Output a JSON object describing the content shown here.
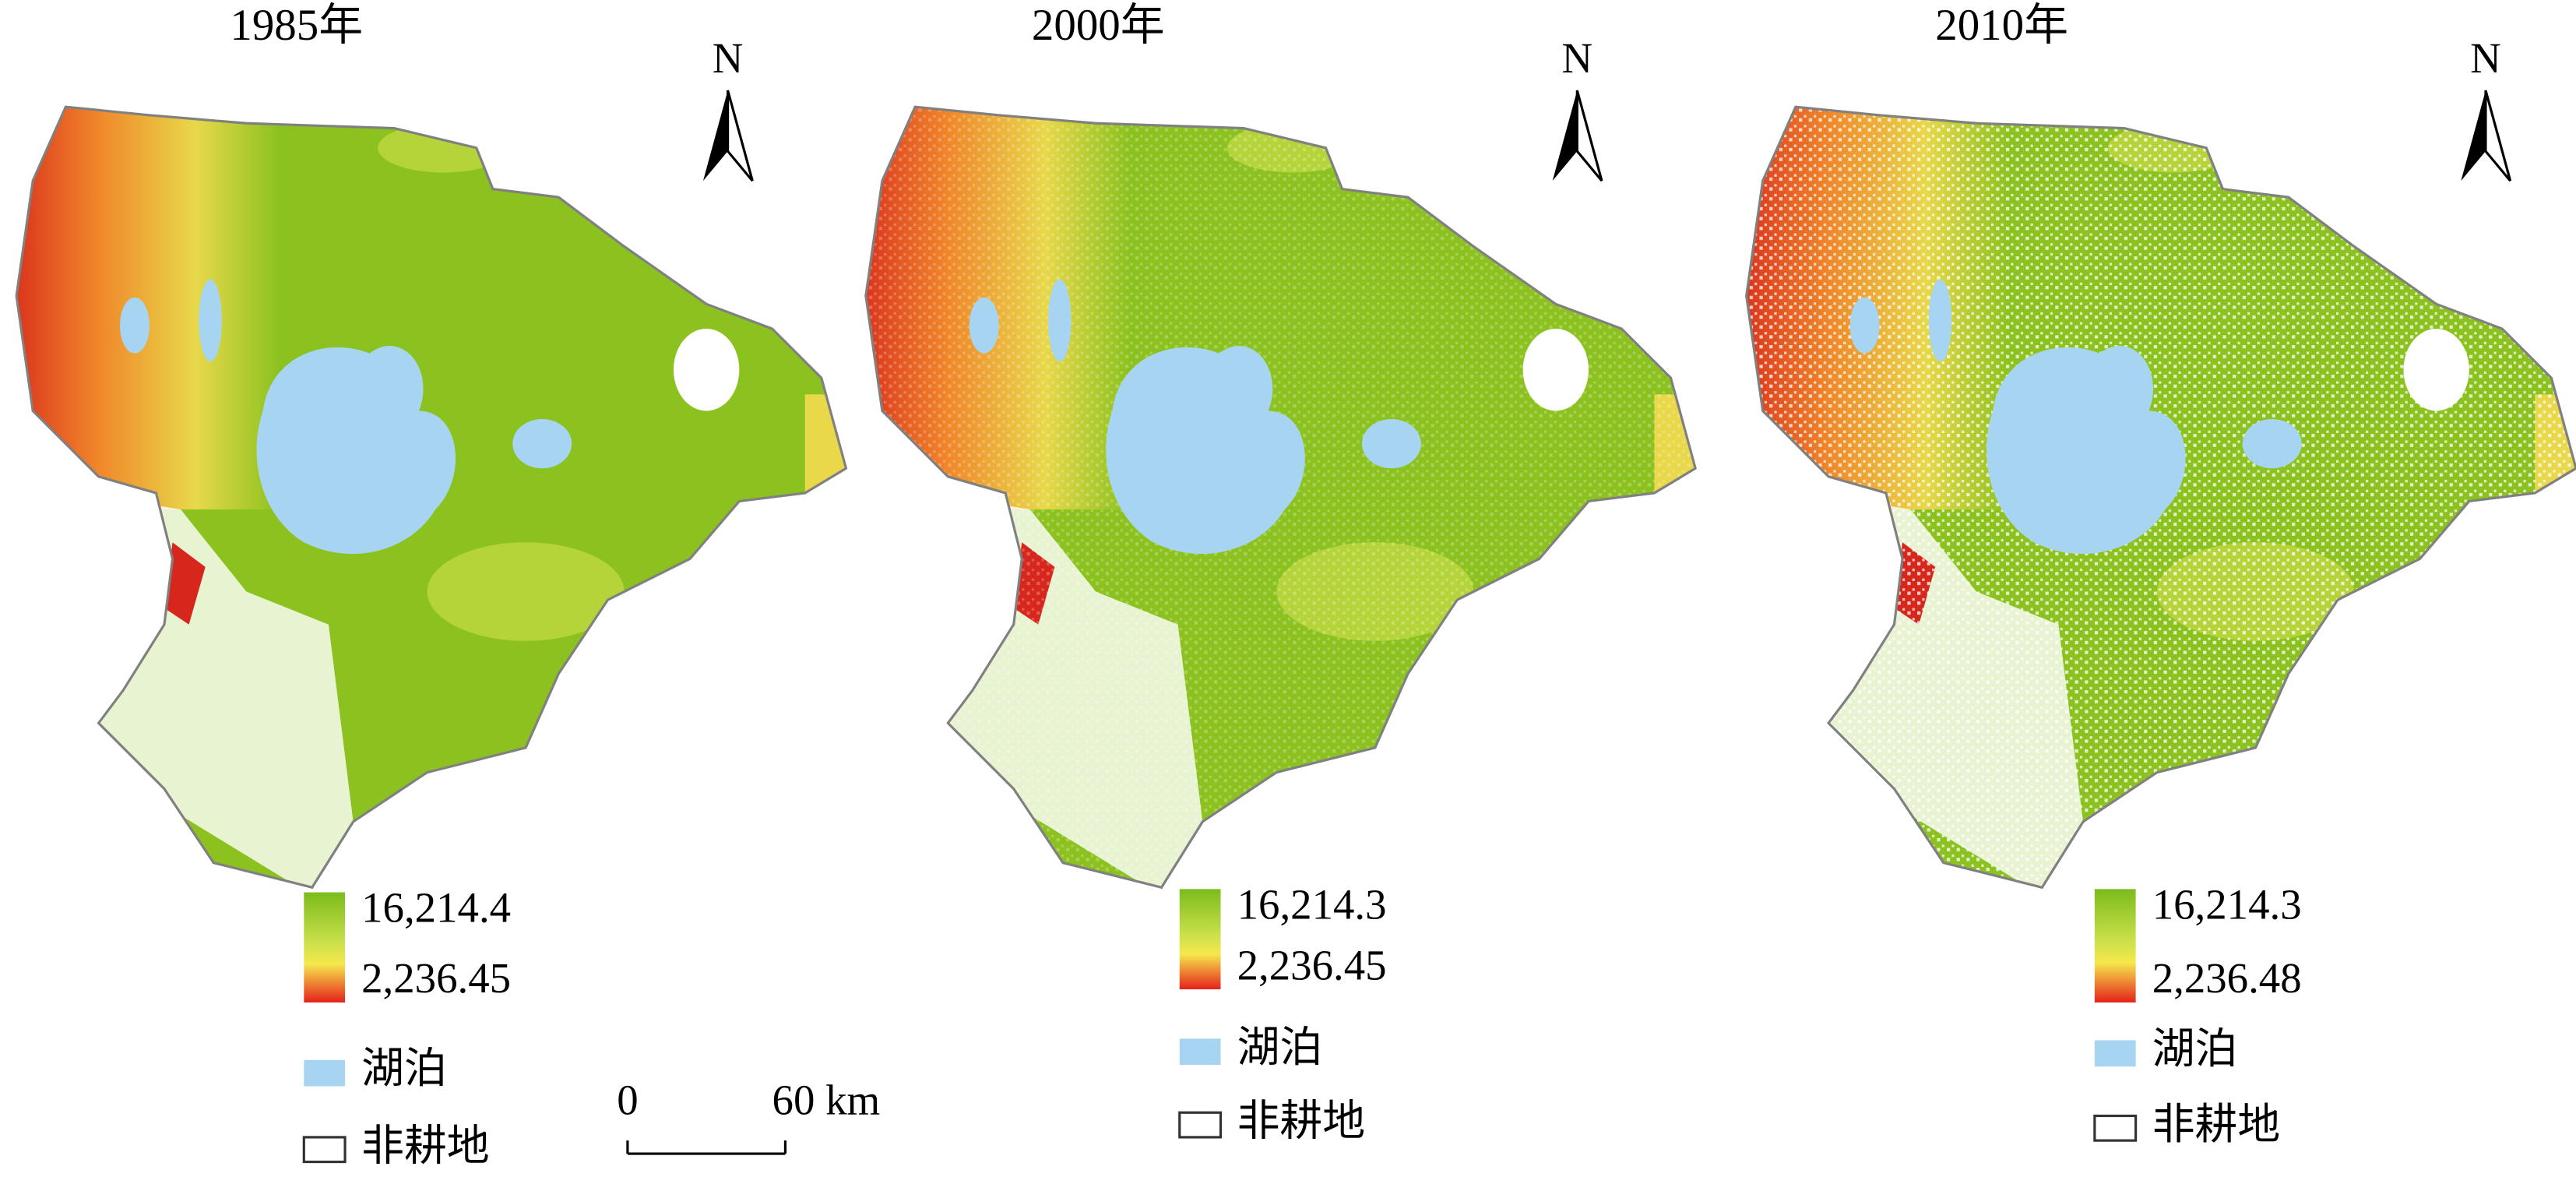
{
  "panels": [
    {
      "title": "1985年",
      "north": "N",
      "legend": {
        "max": "16,214.4",
        "min": "2,236.45",
        "lake": "湖泊",
        "non_cropland": "非耕地"
      }
    },
    {
      "title": "2000年",
      "north": "N",
      "legend": {
        "max": "16,214.3",
        "min": "2,236.45",
        "lake": "湖泊",
        "non_cropland": "非耕地"
      }
    },
    {
      "title": "2010年",
      "north": "N",
      "legend": {
        "max": "16,214.3",
        "min": "2,236.48",
        "lake": "湖泊",
        "non_cropland": "非耕地"
      }
    }
  ],
  "scale_bar": {
    "start": "0",
    "end": "60 km"
  }
}
